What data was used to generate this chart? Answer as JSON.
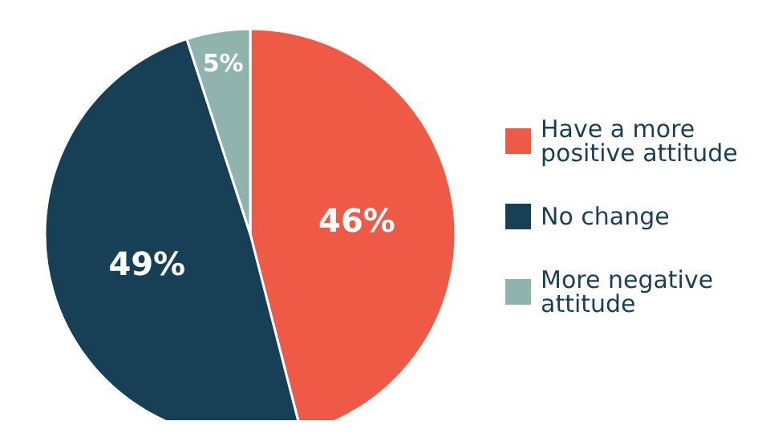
{
  "chart_data": {
    "type": "pie",
    "categories": [
      "Have a more positive attitude",
      "No change",
      "More negative attitude"
    ],
    "values": [
      46,
      49,
      5
    ],
    "colors": [
      "#ef5a47",
      "#173f55",
      "#8fb3ad"
    ],
    "value_labels": [
      "46%",
      "49%",
      "5%"
    ],
    "legend": "right"
  }
}
